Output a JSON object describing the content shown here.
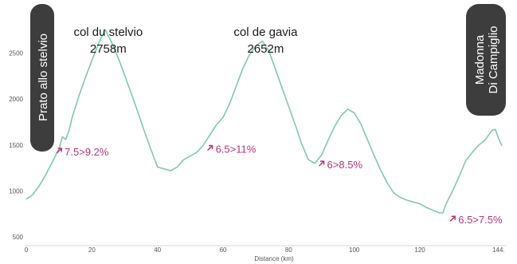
{
  "chart_data": {
    "type": "line",
    "xlabel": "Distance (km)",
    "ylabel": "",
    "xlim": [
      0,
      145
    ],
    "ylim": [
      500,
      2800
    ],
    "x_ticks": [
      {
        "value": 0,
        "label": "0"
      },
      {
        "value": 20,
        "label": "20"
      },
      {
        "value": 40,
        "label": "40"
      },
      {
        "value": 60,
        "label": "60"
      },
      {
        "value": 80,
        "label": "80"
      },
      {
        "value": 100,
        "label": "100"
      },
      {
        "value": 120,
        "label": "120"
      },
      {
        "value": 144,
        "label": "144."
      }
    ],
    "y_ticks": [
      {
        "value": 500,
        "label": "500"
      },
      {
        "value": 1000,
        "label": "1000"
      },
      {
        "value": 1500,
        "label": "1500"
      },
      {
        "value": 2000,
        "label": "2000"
      },
      {
        "value": 2500,
        "label": "2500"
      }
    ],
    "grid": false,
    "line_color": "#7fc8b2",
    "accent_color": "#b5337e",
    "start_place": "Prato allo stelvio",
    "end_place": [
      "Madonna",
      "Di Campiglio"
    ],
    "place_box_color": "#3d3d3d",
    "peaks": [
      {
        "name": "col du stelvio",
        "elevation": "2758m",
        "x": 24,
        "y": 2758
      },
      {
        "name": "col de gavia",
        "elevation": "2652m",
        "x": 72,
        "y": 2652
      }
    ],
    "grades": [
      {
        "text": "7.5>9.2%",
        "x": 10,
        "y": 1290
      },
      {
        "text": "6.5>11%",
        "x": 56,
        "y": 1320
      },
      {
        "text": "6>8.5%",
        "x": 90,
        "y": 1150
      },
      {
        "text": "6.5>7.5%",
        "x": 130,
        "y": 550
      }
    ],
    "series": [
      {
        "points": [
          [
            0,
            910
          ],
          [
            2,
            960
          ],
          [
            4,
            1060
          ],
          [
            6,
            1180
          ],
          [
            8,
            1320
          ],
          [
            10,
            1460
          ],
          [
            11,
            1590
          ],
          [
            12,
            1560
          ],
          [
            13,
            1650
          ],
          [
            14,
            1800
          ],
          [
            16,
            2030
          ],
          [
            18,
            2230
          ],
          [
            20,
            2420
          ],
          [
            22,
            2600
          ],
          [
            24,
            2758
          ],
          [
            26,
            2620
          ],
          [
            28,
            2450
          ],
          [
            30,
            2260
          ],
          [
            32,
            2060
          ],
          [
            34,
            1860
          ],
          [
            36,
            1650
          ],
          [
            38,
            1450
          ],
          [
            40,
            1260
          ],
          [
            42,
            1240
          ],
          [
            44,
            1220
          ],
          [
            46,
            1260
          ],
          [
            48,
            1340
          ],
          [
            50,
            1380
          ],
          [
            52,
            1420
          ],
          [
            54,
            1500
          ],
          [
            56,
            1610
          ],
          [
            58,
            1720
          ],
          [
            60,
            1800
          ],
          [
            62,
            1950
          ],
          [
            64,
            2140
          ],
          [
            66,
            2330
          ],
          [
            68,
            2480
          ],
          [
            70,
            2580
          ],
          [
            72,
            2630
          ],
          [
            74,
            2520
          ],
          [
            76,
            2320
          ],
          [
            78,
            2120
          ],
          [
            80,
            1920
          ],
          [
            82,
            1720
          ],
          [
            84,
            1510
          ],
          [
            86,
            1340
          ],
          [
            88,
            1300
          ],
          [
            90,
            1390
          ],
          [
            92,
            1550
          ],
          [
            94,
            1700
          ],
          [
            96,
            1820
          ],
          [
            98,
            1890
          ],
          [
            100,
            1850
          ],
          [
            102,
            1730
          ],
          [
            104,
            1560
          ],
          [
            106,
            1390
          ],
          [
            108,
            1230
          ],
          [
            110,
            1090
          ],
          [
            112,
            980
          ],
          [
            114,
            930
          ],
          [
            116,
            900
          ],
          [
            118,
            880
          ],
          [
            120,
            860
          ],
          [
            122,
            820
          ],
          [
            124,
            790
          ],
          [
            126,
            760
          ],
          [
            127,
            760
          ],
          [
            128,
            860
          ],
          [
            130,
            1000
          ],
          [
            132,
            1160
          ],
          [
            134,
            1330
          ],
          [
            136,
            1420
          ],
          [
            138,
            1500
          ],
          [
            140,
            1560
          ],
          [
            142,
            1660
          ],
          [
            143,
            1670
          ],
          [
            144,
            1570
          ],
          [
            145,
            1490
          ]
        ]
      }
    ]
  }
}
